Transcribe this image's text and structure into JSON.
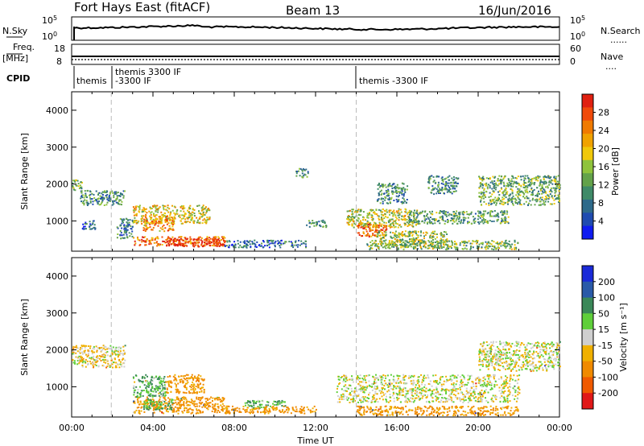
{
  "header": {
    "station": "Fort Hays East (fitACF)",
    "beam": "Beam 13",
    "date": "16/Jun/2016"
  },
  "top_strip": {
    "left_label": "N.Sky",
    "left_ticks": [
      "10^5",
      "10^0"
    ],
    "right_label": "N.Search",
    "right_ticks": [
      "10^5",
      "10^0"
    ]
  },
  "freq_strip": {
    "left_label_1": "Freq.",
    "left_label_2": "[MHz]",
    "left_ticks": [
      "18",
      "8"
    ],
    "right_label": "Nave",
    "right_ticks": [
      "60",
      "0"
    ]
  },
  "cpid": {
    "label": "CPID",
    "segments": [
      "themis",
      "themis 3300 IF",
      "-3300 IF",
      "themis -3300 IF"
    ]
  },
  "chart_data": [
    {
      "type": "heatmap",
      "title": "Fort Hays East (fitACF) Beam 13 16/Jun/2016",
      "xlabel": "Time UT",
      "ylabel": "Slant Range [km]",
      "xlim": [
        0,
        24
      ],
      "ylim": [
        180,
        4500
      ],
      "x_ticks": [
        "00:00",
        "04:00",
        "08:00",
        "12:00",
        "16:00",
        "20:00",
        "00:00"
      ],
      "y_ticks": [
        1000,
        2000,
        3000,
        4000
      ],
      "colorbar": {
        "label": "Power [dB]",
        "ticks": [
          "4",
          "8",
          "12",
          "16",
          "20",
          "24",
          "28"
        ],
        "colors": [
          "#0f1bf0",
          "#1f4bb0",
          "#2e6a8a",
          "#3f8a68",
          "#63a24a",
          "#8fc33c",
          "#f0c80a",
          "#f0a200",
          "#f07a00",
          "#f04a0a",
          "#e02010"
        ]
      },
      "echo_regions": [
        {
          "t0": 0.0,
          "t1": 0.5,
          "r0": 1800,
          "r1": 2100,
          "level": 0.4
        },
        {
          "t0": 0.4,
          "t1": 2.6,
          "r0": 1400,
          "r1": 1800,
          "level": 0.3
        },
        {
          "t0": 0.5,
          "t1": 1.2,
          "r0": 750,
          "r1": 1000,
          "level": 0.2
        },
        {
          "t0": 2.2,
          "t1": 3.0,
          "r0": 500,
          "r1": 1050,
          "level": 0.25
        },
        {
          "t0": 3.0,
          "t1": 6.8,
          "r0": 900,
          "r1": 1400,
          "level": 0.6
        },
        {
          "t0": 3.5,
          "t1": 5.0,
          "r0": 700,
          "r1": 1100,
          "level": 0.75
        },
        {
          "t0": 3.0,
          "t1": 7.6,
          "r0": 300,
          "r1": 550,
          "level": 0.8
        },
        {
          "t0": 4.5,
          "t1": 7.4,
          "r0": 280,
          "r1": 500,
          "level": 1.0
        },
        {
          "t0": 7.5,
          "t1": 11.5,
          "r0": 250,
          "r1": 450,
          "level": 0.2
        },
        {
          "t0": 11.5,
          "t1": 12.5,
          "r0": 800,
          "r1": 1000,
          "level": 0.3
        },
        {
          "t0": 13.5,
          "t1": 17.0,
          "r0": 800,
          "r1": 1300,
          "level": 0.55
        },
        {
          "t0": 14.0,
          "t1": 15.5,
          "r0": 550,
          "r1": 900,
          "level": 0.85
        },
        {
          "t0": 15.0,
          "t1": 18.5,
          "r0": 300,
          "r1": 700,
          "level": 0.5
        },
        {
          "t0": 16.5,
          "t1": 21.5,
          "r0": 900,
          "r1": 1250,
          "level": 0.35
        },
        {
          "t0": 14.5,
          "t1": 22.0,
          "r0": 200,
          "r1": 450,
          "level": 0.45
        },
        {
          "t0": 20.0,
          "t1": 24.0,
          "r0": 1400,
          "r1": 2200,
          "level": 0.4
        },
        {
          "t0": 11.0,
          "t1": 11.6,
          "r0": 2150,
          "r1": 2400,
          "level": 0.3
        },
        {
          "t0": 15.0,
          "t1": 16.5,
          "r0": 1450,
          "r1": 2000,
          "level": 0.3
        },
        {
          "t0": 17.5,
          "t1": 19.0,
          "r0": 1700,
          "r1": 2200,
          "level": 0.3
        }
      ]
    },
    {
      "type": "heatmap",
      "xlabel": "Time UT",
      "ylabel": "Slant Range [km]",
      "xlim": [
        0,
        24
      ],
      "ylim": [
        180,
        4500
      ],
      "x_ticks": [
        "00:00",
        "04:00",
        "08:00",
        "12:00",
        "16:00",
        "20:00",
        "00:00"
      ],
      "y_ticks": [
        1000,
        2000,
        3000,
        4000
      ],
      "colorbar": {
        "label": "Velocity [m s⁻¹]",
        "ticks": [
          "200",
          "100",
          "50",
          "15",
          "-15",
          "-50",
          "-100",
          "-200"
        ],
        "colors": [
          "#1a2ad8",
          "#2a5aa8",
          "#3a8858",
          "#5fcf3a",
          "#cfcfcf",
          "#f0b000",
          "#f08a00",
          "#f05a00",
          "#e01818"
        ]
      },
      "echo_regions": [
        {
          "t0": 0.0,
          "t1": 2.6,
          "r0": 1500,
          "r1": 2100,
          "vel": -10
        },
        {
          "t0": 3.0,
          "t1": 7.6,
          "r0": 250,
          "r1": 700,
          "vel": -40
        },
        {
          "t0": 3.0,
          "t1": 4.6,
          "r0": 700,
          "r1": 1300,
          "vel": 30
        },
        {
          "t0": 4.6,
          "t1": 6.5,
          "r0": 800,
          "r1": 1300,
          "vel": -40
        },
        {
          "t0": 3.5,
          "t1": 5.0,
          "r0": 350,
          "r1": 650,
          "vel": 30
        },
        {
          "t0": 8.5,
          "t1": 10.5,
          "r0": 400,
          "r1": 600,
          "vel": 30
        },
        {
          "t0": 7.5,
          "t1": 12.0,
          "r0": 250,
          "r1": 450,
          "vel": -40
        },
        {
          "t0": 13.0,
          "t1": 22.0,
          "r0": 550,
          "r1": 1300,
          "vel": 0
        },
        {
          "t0": 14.0,
          "t1": 22.0,
          "r0": 200,
          "r1": 450,
          "vel": -40
        },
        {
          "t0": 20.0,
          "t1": 24.0,
          "r0": 1400,
          "r1": 2200,
          "vel": 0
        }
      ]
    }
  ]
}
